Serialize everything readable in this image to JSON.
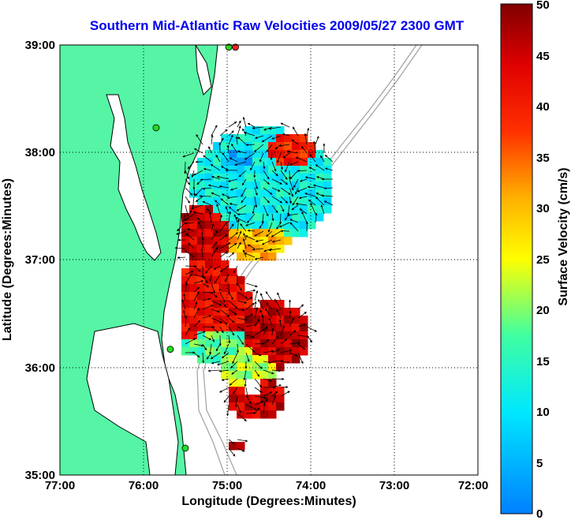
{
  "title": "Southern Mid-Atlantic Raw Velocities 2009/05/27 2300 GMT",
  "x_axis": {
    "label": "Longitude (Degrees:Minutes)",
    "ticks": [
      "77:00",
      "76:00",
      "75:00",
      "74:00",
      "73:00",
      "72:00"
    ]
  },
  "y_axis": {
    "label": "Latitude (Degrees:Minutes)",
    "ticks": [
      "39:00",
      "38:00",
      "37:00",
      "36:00",
      "35:00"
    ]
  },
  "colorbar": {
    "label": "Surface Velocity (cm/s)",
    "ticks": [
      "0",
      "5",
      "10",
      "15",
      "20",
      "25",
      "30",
      "35",
      "40",
      "45",
      "50"
    ],
    "min": 0,
    "max": 50
  },
  "map_extent": {
    "lon_min": -77,
    "lon_max": -72,
    "lat_min": 35,
    "lat_max": 39
  },
  "colors": {
    "title": "#0000ee",
    "land": "#55f5a5",
    "coastline": "#000000",
    "bathymetry": "#a0a0a0",
    "grid": "#000000",
    "station": "#22dd22"
  },
  "stations": [
    {
      "lon": -74.9,
      "lat": 38.98,
      "color": "#ff2222"
    },
    {
      "lon": -74.98,
      "lat": 38.98,
      "color": "#22dd22"
    },
    {
      "lon": -75.85,
      "lat": 38.23,
      "color": "#22dd22"
    },
    {
      "lon": -75.68,
      "lat": 36.17,
      "color": "#22dd22"
    },
    {
      "lon": -75.5,
      "lat": 35.25,
      "color": "#22dd22"
    }
  ]
}
